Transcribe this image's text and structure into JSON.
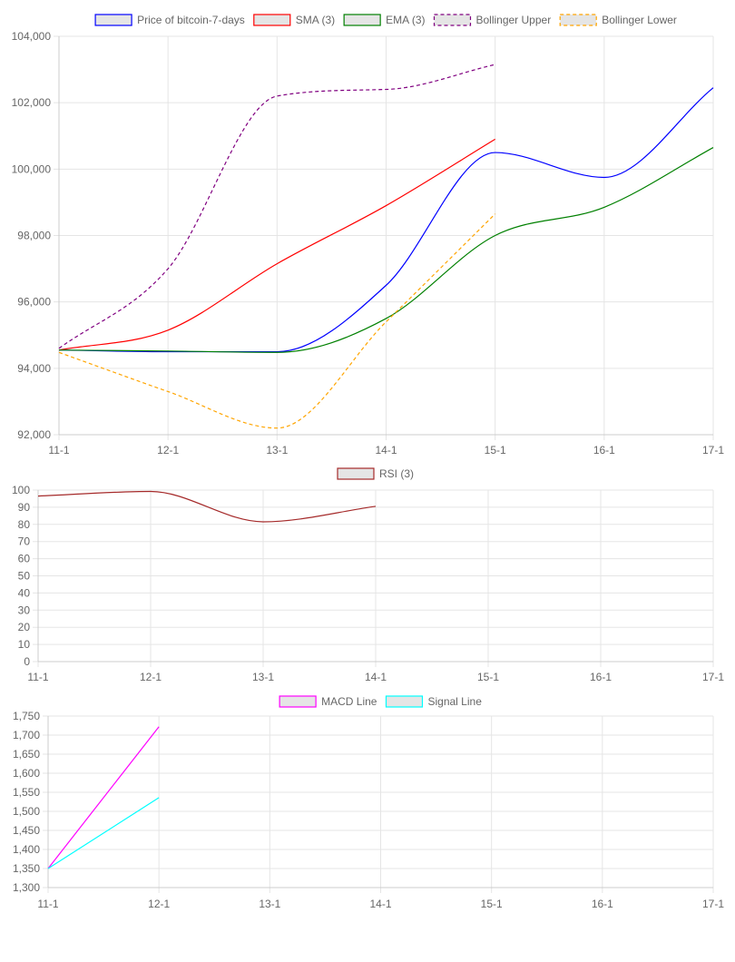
{
  "chart_data": [
    {
      "type": "line",
      "categories": [
        "11-1",
        "12-1",
        "13-1",
        "14-1",
        "15-1",
        "16-1",
        "17-1"
      ],
      "ylim": [
        92000,
        104000
      ],
      "yticks": [
        92000,
        94000,
        96000,
        98000,
        100000,
        102000,
        104000
      ],
      "grid": true,
      "legend": "top-center",
      "series": [
        {
          "name": "Price of bitcoin-7-days",
          "color": "#0000ff",
          "dashed": false,
          "values": [
            94550,
            94500,
            94500,
            96500,
            100500,
            99750,
            102450
          ]
        },
        {
          "name": "SMA (3)",
          "color": "#ff0000",
          "dashed": false,
          "values": [
            94550,
            95150,
            97150,
            98900,
            100900,
            null,
            null
          ]
        },
        {
          "name": "EMA (3)",
          "color": "#008000",
          "dashed": false,
          "values": [
            94550,
            94520,
            94480,
            95500,
            98000,
            98850,
            100650
          ]
        },
        {
          "name": "Bollinger Upper",
          "color": "#800080",
          "dashed": true,
          "values": [
            94600,
            97000,
            102200,
            102400,
            103150,
            null,
            null
          ]
        },
        {
          "name": "Bollinger Lower",
          "color": "#ffa500",
          "dashed": true,
          "values": [
            94480,
            93300,
            92200,
            95400,
            98650,
            null,
            null
          ]
        }
      ]
    },
    {
      "type": "line",
      "categories": [
        "11-1",
        "12-1",
        "13-1",
        "14-1",
        "15-1",
        "16-1",
        "17-1"
      ],
      "ylim": [
        0,
        100
      ],
      "yticks": [
        0,
        10,
        20,
        30,
        40,
        50,
        60,
        70,
        80,
        90,
        100
      ],
      "grid": true,
      "legend": "top-center",
      "series": [
        {
          "name": "RSI (3)",
          "color": "#a52a2a",
          "dashed": false,
          "values": [
            96.5,
            99.2,
            81.5,
            90.5,
            null,
            null,
            null
          ]
        }
      ]
    },
    {
      "type": "line",
      "categories": [
        "11-1",
        "12-1",
        "13-1",
        "14-1",
        "15-1",
        "16-1",
        "17-1"
      ],
      "ylim": [
        1300,
        1750
      ],
      "yticks": [
        1300,
        1350,
        1400,
        1450,
        1500,
        1550,
        1600,
        1650,
        1700,
        1750
      ],
      "grid": true,
      "legend": "top-center",
      "series": [
        {
          "name": "MACD Line",
          "color": "#ff00ff",
          "dashed": false,
          "values": [
            1350,
            1722,
            null,
            null,
            null,
            null,
            null
          ]
        },
        {
          "name": "Signal Line",
          "color": "#00ffff",
          "dashed": false,
          "values": [
            1350,
            1536,
            null,
            null,
            null,
            null,
            null
          ]
        }
      ]
    }
  ]
}
